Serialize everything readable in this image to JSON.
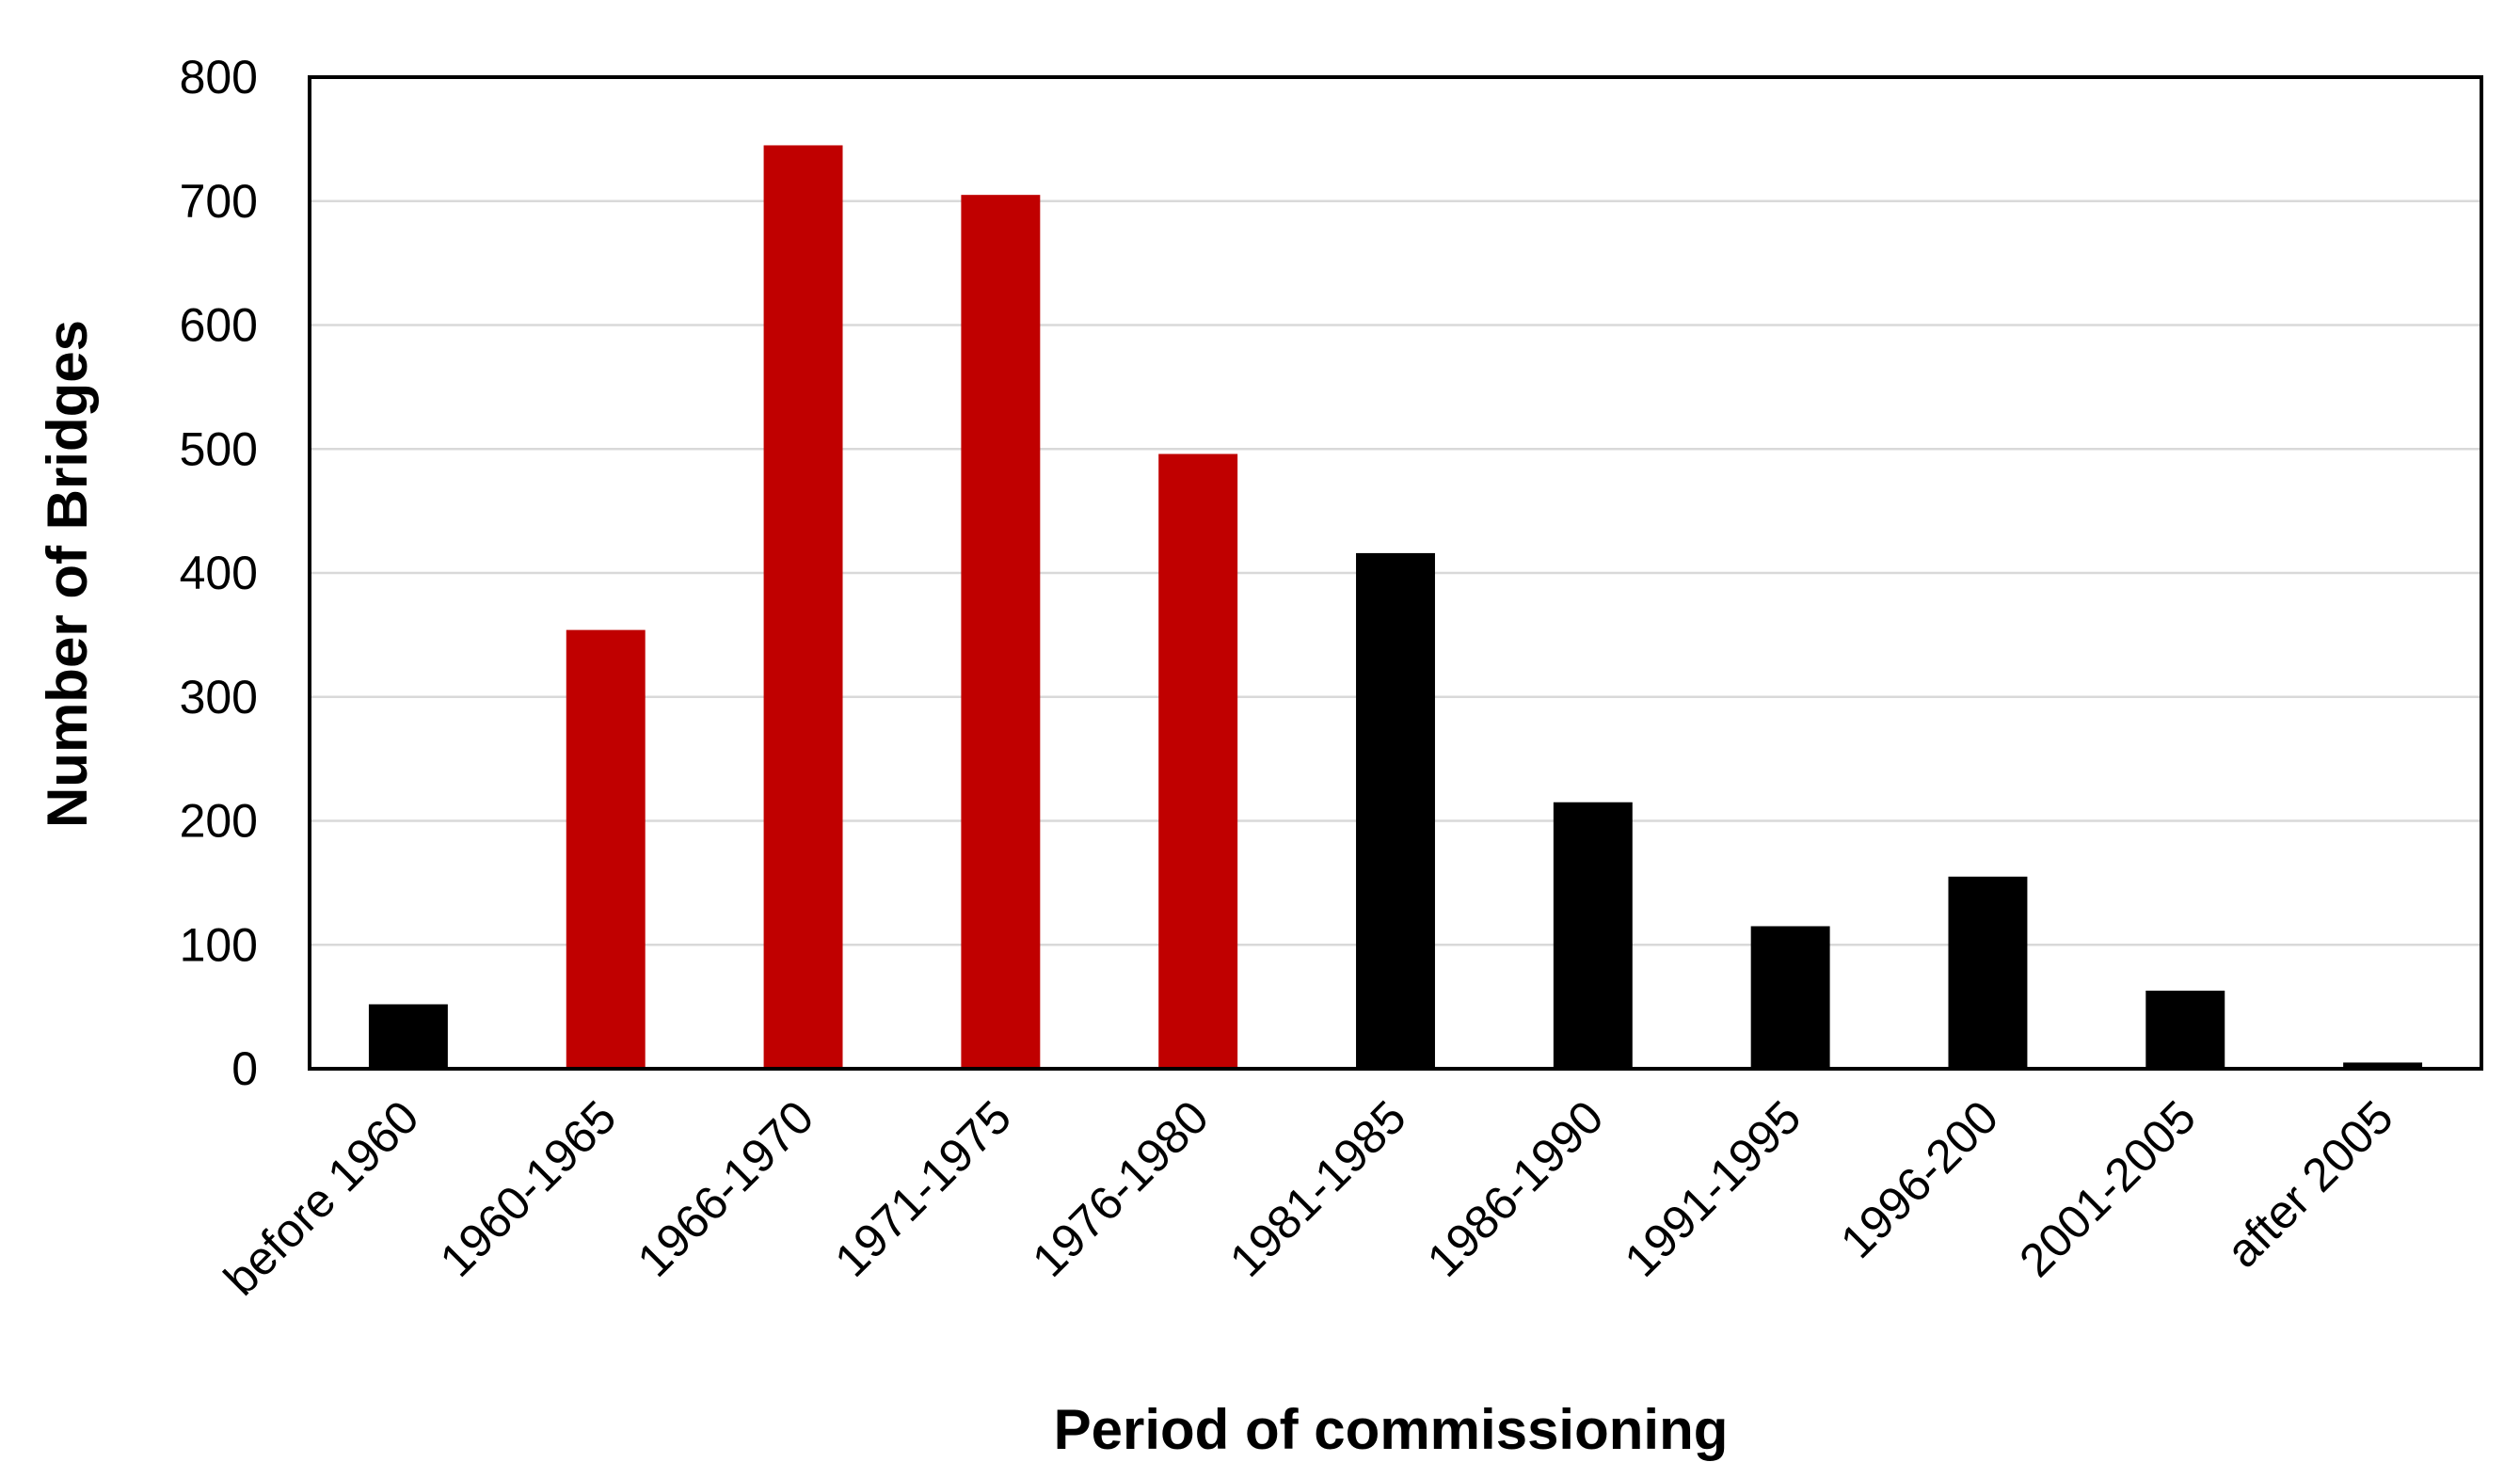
{
  "chart_data": {
    "type": "bar",
    "title": "",
    "xlabel": "Period of commissioning",
    "ylabel": "Number of Bridges",
    "ylim": [
      0,
      800
    ],
    "yticks": [
      0,
      100,
      200,
      300,
      400,
      500,
      600,
      700,
      800
    ],
    "grid": true,
    "legend": "none",
    "categories": [
      "before 1960",
      "1960-1965",
      "1966-1970",
      "1971-1975",
      "1976-1980",
      "1981-1985",
      "1986-1990",
      "1991-1995",
      "1996-200",
      "2001-2005",
      "after 2005"
    ],
    "values": [
      52,
      354,
      745,
      705,
      496,
      416,
      215,
      115,
      155,
      63,
      5
    ],
    "bar_colors": [
      "#000000",
      "#c00000",
      "#c00000",
      "#c00000",
      "#c00000",
      "#000000",
      "#000000",
      "#000000",
      "#000000",
      "#000000",
      "#000000"
    ]
  }
}
